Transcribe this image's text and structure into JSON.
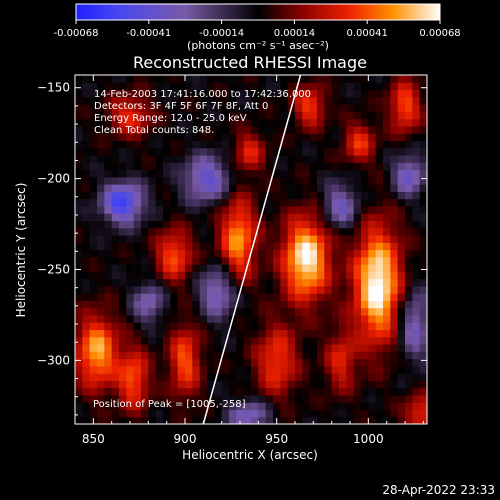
{
  "chart_data": {
    "type": "heatmap",
    "title": "Reconstructed RHESSI Image",
    "colorbar": {
      "min": -0.00068,
      "max": 0.00068,
      "ticks": [
        "-0.00068",
        "-0.00041",
        "-0.00014",
        "0.00014",
        "0.00041",
        "0.00068"
      ],
      "unit_label": "(photons cm⁻² s⁻¹ asec⁻²)"
    },
    "xlabel": "Heliocentric X (arcsec)",
    "ylabel": "Heliocentric Y (arcsec)",
    "xlim": [
      840,
      1032
    ],
    "ylim": [
      -335,
      -143
    ],
    "xticks": [
      850,
      900,
      950,
      1000
    ],
    "yticks": [
      -150,
      -200,
      -250,
      -300
    ],
    "annotations": [
      "14-Feb-2003 17:41:16.000  to 17:42:36.000",
      "Detectors: 3F 4F 5F 6F 7F 8F, Att 0",
      "Energy Range: 12.0 - 25.0 keV",
      "Clean     Total counts: 848."
    ],
    "peak_label": "Position of Peak = [1005,-258]",
    "limb_line": [
      [
        910,
        -335
      ],
      [
        963,
        -143
      ]
    ],
    "sources": [
      {
        "x": 966,
        "y": -244,
        "sx": 9,
        "sy": 16,
        "amp": 1.0
      },
      {
        "x": 1005,
        "y": -258,
        "sx": 9,
        "sy": 22,
        "amp": 1.05
      },
      {
        "x": 929,
        "y": -233,
        "sx": 7,
        "sy": 16,
        "amp": 0.75
      },
      {
        "x": 894,
        "y": -242,
        "sx": 7,
        "sy": 10,
        "amp": 0.6
      },
      {
        "x": 852,
        "y": -295,
        "sx": 8,
        "sy": 14,
        "amp": 0.8
      },
      {
        "x": 872,
        "y": -310,
        "sx": 6,
        "sy": 12,
        "amp": 0.6
      },
      {
        "x": 900,
        "y": -300,
        "sx": 6,
        "sy": 14,
        "amp": 0.6
      },
      {
        "x": 1020,
        "y": -160,
        "sx": 6,
        "sy": 10,
        "amp": 0.6
      },
      {
        "x": 968,
        "y": -160,
        "sx": 6,
        "sy": 8,
        "amp": 0.55
      },
      {
        "x": 995,
        "y": -180,
        "sx": 6,
        "sy": 8,
        "amp": 0.5
      },
      {
        "x": 950,
        "y": -300,
        "sx": 8,
        "sy": 14,
        "amp": 0.55
      },
      {
        "x": 985,
        "y": -300,
        "sx": 6,
        "sy": 12,
        "amp": 0.45
      },
      {
        "x": 1028,
        "y": -330,
        "sx": 6,
        "sy": 8,
        "amp": 0.5
      },
      {
        "x": 870,
        "y": -165,
        "sx": 8,
        "sy": 8,
        "amp": 0.5
      },
      {
        "x": 935,
        "y": -185,
        "sx": 6,
        "sy": 8,
        "amp": 0.45
      }
    ],
    "sinks": [
      {
        "x": 866,
        "y": -213,
        "sx": 8,
        "sy": 8,
        "amp": 0.8
      },
      {
        "x": 912,
        "y": -200,
        "sx": 9,
        "sy": 9,
        "amp": 0.6
      },
      {
        "x": 918,
        "y": -262,
        "sx": 7,
        "sy": 10,
        "amp": 0.55
      },
      {
        "x": 985,
        "y": -215,
        "sx": 7,
        "sy": 9,
        "amp": 0.5
      },
      {
        "x": 1022,
        "y": -198,
        "sx": 6,
        "sy": 8,
        "amp": 0.55
      },
      {
        "x": 1025,
        "y": -280,
        "sx": 6,
        "sy": 14,
        "amp": 0.5
      },
      {
        "x": 935,
        "y": -330,
        "sx": 8,
        "sy": 6,
        "amp": 0.5
      },
      {
        "x": 880,
        "y": -268,
        "sx": 6,
        "sy": 8,
        "amp": 0.45
      }
    ]
  },
  "footer": {
    "timestamp": "28-Apr-2022 23:33"
  }
}
